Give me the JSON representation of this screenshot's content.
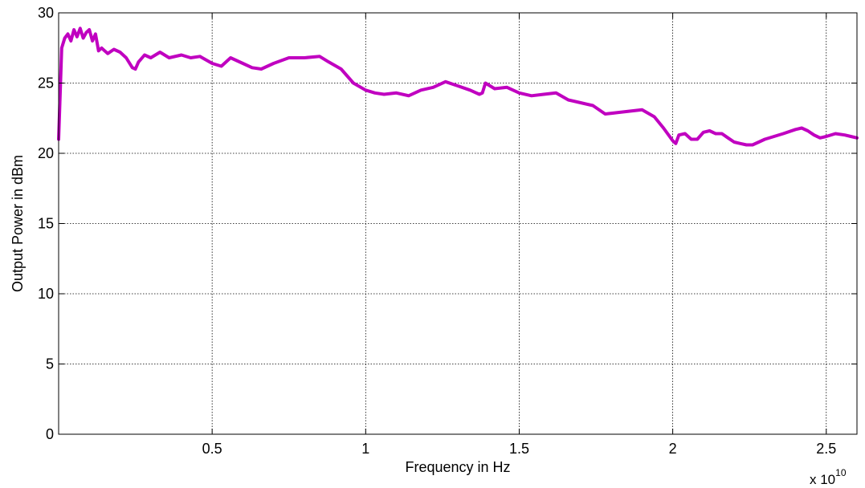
{
  "chart_data": {
    "type": "line",
    "title": "",
    "xlabel": "Frequency in Hz",
    "ylabel": "Output Power in dBm",
    "x_exponent": {
      "base": "x 10",
      "power": "10"
    },
    "xlim": [
      0.0,
      2.6
    ],
    "ylim": [
      0,
      30
    ],
    "x_scale_factor": 10000000000.0,
    "grid": true,
    "xticks": [
      0.5,
      1,
      1.5,
      2,
      2.5
    ],
    "xtick_labels": [
      "0.5",
      "1",
      "1.5",
      "2",
      "2.5"
    ],
    "yticks": [
      0,
      5,
      10,
      15,
      20,
      25,
      30
    ],
    "ytick_labels": [
      "0",
      "5",
      "10",
      "15",
      "20",
      "25",
      "30"
    ],
    "colors": {
      "series": "#c000c0"
    },
    "series": [
      {
        "x": [
          0.0,
          0.01,
          0.02,
          0.03,
          0.04,
          0.05,
          0.06,
          0.07,
          0.08,
          0.09,
          0.1,
          0.11,
          0.12,
          0.13,
          0.14,
          0.15,
          0.16,
          0.18,
          0.2,
          0.22,
          0.24,
          0.25,
          0.26,
          0.28,
          0.3,
          0.33,
          0.36,
          0.4,
          0.43,
          0.46,
          0.5,
          0.53,
          0.56,
          0.6,
          0.63,
          0.66,
          0.7,
          0.75,
          0.8,
          0.85,
          0.88,
          0.92,
          0.96,
          1.0,
          1.03,
          1.06,
          1.1,
          1.14,
          1.18,
          1.22,
          1.26,
          1.3,
          1.34,
          1.37,
          1.38,
          1.39,
          1.42,
          1.46,
          1.5,
          1.54,
          1.58,
          1.62,
          1.66,
          1.7,
          1.74,
          1.78,
          1.82,
          1.86,
          1.9,
          1.94,
          1.97,
          2.0,
          2.01,
          2.02,
          2.04,
          2.06,
          2.08,
          2.1,
          2.12,
          2.14,
          2.16,
          2.18,
          2.2,
          2.22,
          2.24,
          2.26,
          2.28,
          2.3,
          2.33,
          2.36,
          2.4,
          2.42,
          2.44,
          2.46,
          2.48,
          2.5,
          2.53,
          2.56,
          2.58,
          2.6
        ],
        "y": [
          21.0,
          27.5,
          28.2,
          28.5,
          28.0,
          28.8,
          28.3,
          28.9,
          28.2,
          28.6,
          28.8,
          28.0,
          28.5,
          27.3,
          27.5,
          27.3,
          27.1,
          27.4,
          27.2,
          26.8,
          26.1,
          26.0,
          26.5,
          27.0,
          26.8,
          27.2,
          26.8,
          27.0,
          26.8,
          26.9,
          26.4,
          26.2,
          26.8,
          26.4,
          26.1,
          26.0,
          26.4,
          26.8,
          26.8,
          26.9,
          26.5,
          26.0,
          25.0,
          24.5,
          24.3,
          24.2,
          24.3,
          24.1,
          24.5,
          24.7,
          25.1,
          24.8,
          24.5,
          24.2,
          24.3,
          25.0,
          24.6,
          24.7,
          24.3,
          24.1,
          24.2,
          24.3,
          23.8,
          23.6,
          23.4,
          22.8,
          22.9,
          23.0,
          23.1,
          22.6,
          21.8,
          20.9,
          20.7,
          21.3,
          21.4,
          21.0,
          21.0,
          21.5,
          21.6,
          21.4,
          21.4,
          21.1,
          20.8,
          20.7,
          20.6,
          20.6,
          20.8,
          21.0,
          21.2,
          21.4,
          21.7,
          21.8,
          21.6,
          21.3,
          21.1,
          21.2,
          21.4,
          21.3,
          21.2,
          21.1
        ]
      }
    ]
  }
}
